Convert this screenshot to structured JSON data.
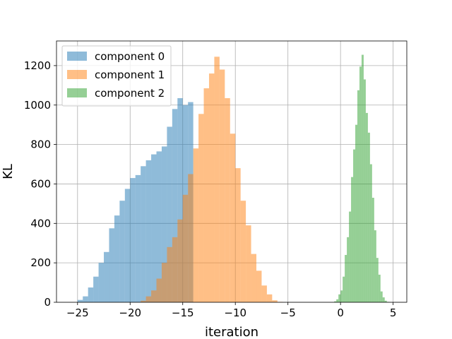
{
  "chart_data": {
    "type": "bar",
    "xlabel": "iteration",
    "ylabel": "KL",
    "xlim": [
      -27,
      6.3
    ],
    "ylim": [
      0,
      1325
    ],
    "xticks": [
      -25,
      -20,
      -15,
      -10,
      -5,
      0,
      5
    ],
    "xtick_labels": [
      "−25",
      "−20",
      "−15",
      "−10",
      "−5",
      "0",
      "5"
    ],
    "yticks": [
      0,
      200,
      400,
      600,
      800,
      1000,
      1200
    ],
    "grid": true,
    "legend_position": "top-left",
    "series": [
      {
        "name": "component 0",
        "color": "#1f77b4",
        "opacity": 0.5,
        "bin_start": -25.0,
        "bin_width": 0.5,
        "values": [
          12,
          30,
          75,
          130,
          200,
          255,
          375,
          440,
          515,
          575,
          630,
          645,
          690,
          720,
          750,
          765,
          790,
          890,
          980,
          1035,
          1000,
          1015
        ]
      },
      {
        "name": "component 1",
        "color": "#ff7f0e",
        "opacity": 0.5,
        "bin_start": -19.0,
        "bin_width": 0.5,
        "values": [
          8,
          30,
          60,
          120,
          200,
          280,
          330,
          420,
          545,
          650,
          780,
          955,
          1085,
          1160,
          1245,
          1180,
          1035,
          855,
          680,
          515,
          390,
          245,
          160,
          85,
          40,
          10,
          2
        ]
      },
      {
        "name": "component 2",
        "color": "#2ca02c",
        "opacity": 0.5,
        "bin_start": -0.6,
        "bin_width": 0.2,
        "values": [
          5,
          15,
          40,
          60,
          130,
          240,
          330,
          460,
          635,
          775,
          900,
          1075,
          1195,
          1255,
          1130,
          960,
          860,
          700,
          530,
          365,
          225,
          140,
          55,
          25,
          8,
          2
        ]
      }
    ]
  }
}
